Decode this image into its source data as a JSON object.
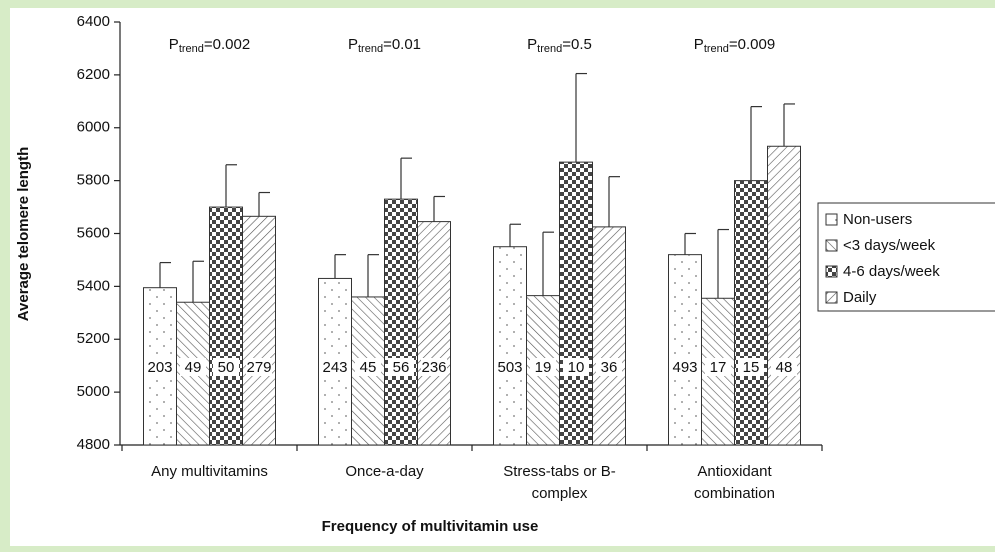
{
  "chart_data": {
    "type": "bar",
    "xlabel": "Frequency of multivitamin use",
    "ylabel": "Average telomere length",
    "categories": [
      [
        "Any multivitamins"
      ],
      [
        "Once-a-day"
      ],
      [
        "Stress-tabs or B-",
        "complex"
      ],
      [
        "Antioxidant",
        "combination"
      ]
    ],
    "annotations": [
      {
        "text": "P",
        "sub": "trend",
        "rest": "=0.002"
      },
      {
        "text": "P",
        "sub": "trend",
        "rest": "=0.01"
      },
      {
        "text": "P",
        "sub": "trend",
        "rest": "=0.5"
      },
      {
        "text": "P",
        "sub": "trend",
        "rest": "=0.009"
      }
    ],
    "series": [
      {
        "name": "Non-users",
        "pattern": "dots",
        "color": "#ffffff",
        "values": [
          5395,
          5430,
          5550,
          5520
        ],
        "errors": [
          95,
          90,
          85,
          80
        ],
        "n": [
          203,
          243,
          503,
          493
        ]
      },
      {
        "name": "<3 days/week",
        "pattern": "back-diag",
        "color": "#ffffff",
        "values": [
          5340,
          5360,
          5365,
          5355
        ],
        "errors": [
          155,
          160,
          240,
          260
        ],
        "n": [
          49,
          45,
          19,
          17
        ]
      },
      {
        "name": "4-6 days/week",
        "pattern": "checker",
        "color": "#ffffff",
        "values": [
          5700,
          5730,
          5870,
          5800
        ],
        "errors": [
          160,
          155,
          335,
          280
        ],
        "n": [
          50,
          56,
          10,
          15
        ]
      },
      {
        "name": "Daily",
        "pattern": "fwd-diag",
        "color": "#ffffff",
        "values": [
          5665,
          5645,
          5625,
          5930
        ],
        "errors": [
          90,
          95,
          190,
          160
        ],
        "n": [
          279,
          236,
          36,
          48
        ]
      }
    ],
    "ylim": [
      4800,
      6400
    ],
    "yticks": [
      4800,
      5000,
      5200,
      5400,
      5600,
      5800,
      6000,
      6200,
      6400
    ],
    "legend": "right"
  }
}
